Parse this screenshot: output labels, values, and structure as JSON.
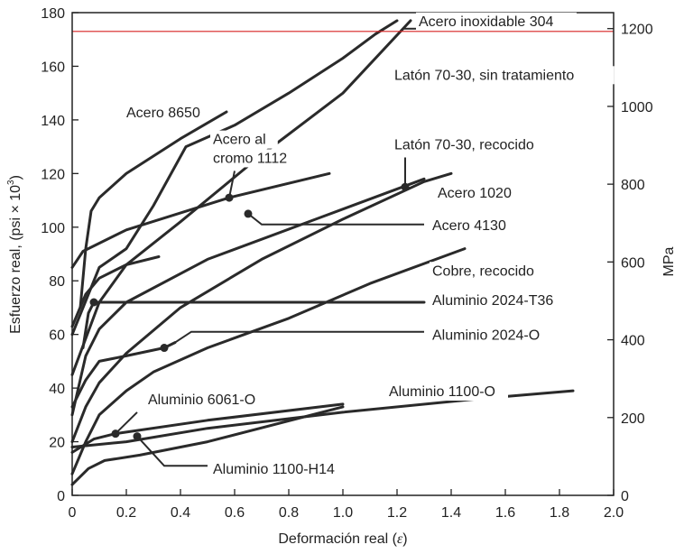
{
  "chart_data": {
    "type": "line",
    "xlabel_text": "Deformación real (",
    "xlabel_symbol": "ε",
    "xlabel_close": ")",
    "ylabel_text": "Esfuerzo real, (psi × 10",
    "ylabel_sup": "3",
    "ylabel_close": ")",
    "y2label": "MPa",
    "xlim": [
      0,
      2.0
    ],
    "ylim": [
      0,
      180
    ],
    "x_ticks": [
      0,
      0.2,
      0.4,
      0.6,
      0.8,
      1.0,
      1.2,
      1.4,
      1.6,
      1.8,
      2.0
    ],
    "x_tick_labels": [
      "0",
      "0.2",
      "0.4",
      "0.6",
      "0.8",
      "1.0",
      "1.2",
      "1.4",
      "1.6",
      "1.8",
      "2.0"
    ],
    "y_ticks": [
      0,
      20,
      40,
      60,
      80,
      100,
      120,
      140,
      160,
      180
    ],
    "y_tick_labels": [
      "0",
      "20",
      "40",
      "60",
      "80",
      "100",
      "120",
      "140",
      "160",
      "180"
    ],
    "y2_ticks": [
      0,
      200,
      400,
      600,
      800,
      1000,
      1200
    ],
    "y2_tick_labels": [
      "0",
      "200",
      "400",
      "600",
      "800",
      "1000",
      "1200"
    ],
    "reference_line": {
      "y": 173,
      "color": "#d62020"
    },
    "series": [
      {
        "name": "Acero inoxidable 304",
        "points": [
          [
            0,
            45
          ],
          [
            0.1,
            72
          ],
          [
            0.2,
            86
          ],
          [
            0.4,
            102
          ],
          [
            0.7,
            127
          ],
          [
            1.0,
            150
          ],
          [
            1.25,
            177
          ]
        ]
      },
      {
        "name": "Latón 70-30, sin tratamiento",
        "points": [
          [
            0,
            60
          ],
          [
            0.1,
            85
          ],
          [
            0.2,
            92
          ],
          [
            0.3,
            108
          ],
          [
            0.42,
            130
          ],
          [
            0.6,
            138
          ],
          [
            0.8,
            150
          ],
          [
            1.0,
            163
          ],
          [
            1.12,
            172
          ],
          [
            1.2,
            177
          ]
        ]
      },
      {
        "name": "Acero 8650",
        "points": [
          [
            0.03,
            70
          ],
          [
            0.05,
            92
          ],
          [
            0.07,
            106
          ],
          [
            0.1,
            111
          ],
          [
            0.2,
            120
          ],
          [
            0.4,
            133
          ],
          [
            0.57,
            143
          ]
        ]
      },
      {
        "name": "Acero al cromo 1112",
        "points": [
          [
            0,
            85
          ],
          [
            0.04,
            91
          ],
          [
            0.2,
            99
          ],
          [
            0.58,
            111
          ],
          [
            0.95,
            120
          ]
        ]
      },
      {
        "name": "Latón 70-30, recocido",
        "points": [
          [
            0,
            20
          ],
          [
            0.05,
            33
          ],
          [
            0.1,
            42
          ],
          [
            0.2,
            53
          ],
          [
            0.4,
            70
          ],
          [
            0.7,
            88
          ],
          [
            1.0,
            103
          ],
          [
            1.3,
            117
          ],
          [
            1.4,
            120
          ]
        ]
      },
      {
        "name": "Acero 1020",
        "points": [
          [
            0,
            30
          ],
          [
            0.05,
            52
          ],
          [
            0.1,
            62
          ],
          [
            0.2,
            72
          ],
          [
            0.5,
            88
          ],
          [
            0.9,
            103
          ],
          [
            1.3,
            118
          ]
        ]
      },
      {
        "name": "Acero 4130",
        "points": [
          [
            0,
            63
          ],
          [
            0.05,
            75
          ],
          [
            0.1,
            81
          ],
          [
            0.2,
            86
          ],
          [
            0.32,
            89
          ]
        ]
      },
      {
        "name": "Cobre, recocido",
        "points": [
          [
            0,
            8
          ],
          [
            0.05,
            20
          ],
          [
            0.1,
            30
          ],
          [
            0.2,
            39
          ],
          [
            0.3,
            46
          ],
          [
            0.5,
            55
          ],
          [
            0.8,
            66
          ],
          [
            1.1,
            79
          ],
          [
            1.45,
            92
          ]
        ]
      },
      {
        "name": "Aluminio 2024-T36",
        "points": [
          [
            0.04,
            55
          ],
          [
            0.06,
            68
          ],
          [
            0.08,
            72
          ],
          [
            1.3,
            72
          ]
        ]
      },
      {
        "name": "Aluminio 2024-O",
        "points": [
          [
            0,
            33
          ],
          [
            0.05,
            43
          ],
          [
            0.1,
            50
          ],
          [
            0.2,
            52
          ],
          [
            0.34,
            55
          ],
          [
            0.38,
            57
          ]
        ]
      },
      {
        "name": "Aluminio 6061-O",
        "points": [
          [
            0,
            16
          ],
          [
            0.08,
            21
          ],
          [
            0.16,
            23
          ],
          [
            0.5,
            28
          ],
          [
            1.0,
            34
          ]
        ]
      },
      {
        "name": "Aluminio 1100-O",
        "points": [
          [
            0,
            18
          ],
          [
            0.2,
            20
          ],
          [
            0.5,
            25
          ],
          [
            1.0,
            31
          ],
          [
            1.5,
            36
          ],
          [
            1.85,
            39
          ]
        ]
      },
      {
        "name": "Aluminio 1100-H14",
        "points": [
          [
            0,
            4
          ],
          [
            0.06,
            10
          ],
          [
            0.12,
            13
          ],
          [
            0.25,
            15
          ],
          [
            0.5,
            20
          ],
          [
            1.0,
            33
          ]
        ]
      }
    ],
    "markers": [
      {
        "x": 0.58,
        "y": 111
      },
      {
        "x": 0.65,
        "y": 105
      },
      {
        "x": 1.23,
        "y": 115
      },
      {
        "x": 0.08,
        "y": 72
      },
      {
        "x": 0.34,
        "y": 55
      },
      {
        "x": 0.16,
        "y": 23
      },
      {
        "x": 0.24,
        "y": 22
      }
    ],
    "annotations": [
      {
        "text": "Acero inoxidable 304",
        "x": 1.28,
        "y": 175,
        "anchor": "start",
        "leader": [
          [
            1.22,
            174
          ],
          [
            1.27,
            174
          ]
        ]
      },
      {
        "text": "Latón 70-30, sin tratamiento",
        "x": 1.19,
        "y": 155,
        "anchor": "start",
        "leader": []
      },
      {
        "text": "Acero 8650",
        "x": 0.2,
        "y": 141,
        "anchor": "start",
        "leader": []
      },
      {
        "text": "Acero al",
        "x": 0.52,
        "y": 131,
        "anchor": "start",
        "leader": []
      },
      {
        "text": "cromo 1112",
        "x": 0.52,
        "y": 124,
        "anchor": "start",
        "leader": [
          [
            0.58,
            111
          ],
          [
            0.6,
            121
          ]
        ]
      },
      {
        "text": "Latón 70-30, recocido",
        "x": 1.19,
        "y": 129,
        "anchor": "start",
        "leader": [
          [
            1.23,
            115
          ],
          [
            1.23,
            126
          ]
        ]
      },
      {
        "text": "Acero 1020",
        "x": 1.35,
        "y": 111,
        "anchor": "start",
        "leader": []
      },
      {
        "text": "Acero 4130",
        "x": 1.33,
        "y": 99,
        "anchor": "start",
        "leader": [
          [
            0.65,
            105
          ],
          [
            0.7,
            101
          ],
          [
            1.3,
            101
          ]
        ]
      },
      {
        "text": "Cobre, recocido",
        "x": 1.33,
        "y": 82,
        "anchor": "start",
        "leader": []
      },
      {
        "text": "Aluminio 2024-T36",
        "x": 1.33,
        "y": 71,
        "anchor": "start",
        "leader": [
          [
            1.3,
            72
          ],
          [
            1.3,
            72
          ]
        ]
      },
      {
        "text": "Aluminio 2024-O",
        "x": 1.33,
        "y": 58,
        "anchor": "start",
        "leader": [
          [
            0.38,
            57
          ],
          [
            0.44,
            61
          ],
          [
            1.3,
            61
          ]
        ]
      },
      {
        "text": "Aluminio 1100-O",
        "x": 1.17,
        "y": 37,
        "anchor": "start",
        "leader": []
      },
      {
        "text": "Aluminio 6061-O",
        "x": 0.28,
        "y": 34,
        "anchor": "start",
        "leader": [
          [
            0.16,
            23
          ],
          [
            0.24,
            31
          ]
        ]
      },
      {
        "text": "Aluminio 1100-H14",
        "x": 0.52,
        "y": 8,
        "anchor": "start",
        "leader": [
          [
            0.24,
            22
          ],
          [
            0.34,
            11
          ],
          [
            0.5,
            11
          ]
        ]
      }
    ],
    "colors": {
      "line": "#2a2a2a",
      "axis": "#222222",
      "text": "#222222"
    }
  }
}
